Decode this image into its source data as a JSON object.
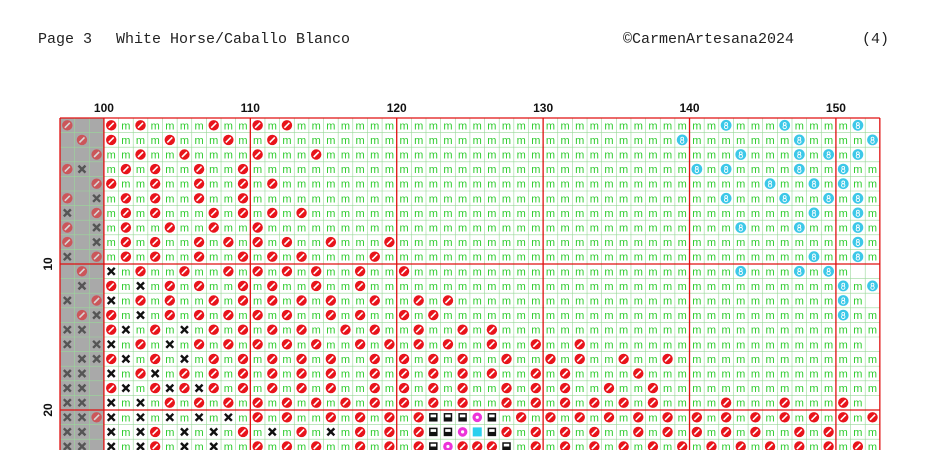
{
  "header": {
    "page": "Page 3",
    "title": "White Horse/Caballo Blanco",
    "copyright": "©CarmenArtesana2024",
    "page_count": "(4)"
  },
  "grid": {
    "column_labels": [
      100,
      110,
      120,
      130,
      140,
      150
    ],
    "row_labels": [
      10,
      20
    ],
    "rows": [
      "o..omommmmommomommmmmmmmmmmmmmmmmmmmmmmmmmmmmcmmmcmmmmc",
      ".o.ommmommmommommmmmmmmmmmmmmmmmmmmmmmmmmmcmmmmmmmcmmmmcm",
      "..ommommommmmommmommmmmmmmmmmmmmmmmmmmmmmmmmmmcmmmcmcmc",
      "ox.momommommommmmmmmmmmmmmmmmmmmmmmmmmmmmmmcmcmmmmcmmcmm",
      "..oommommommomommmmmmmmmmmmmmmmmmmmmmmmmmmmmmmmmcmmcmcmm",
      "o.xmomommommommmmmmmmmmmmmmmmmmmmmmmmmmmmmmmmcmmmcmmcmcm",
      "x.omomommmomomomommmmmmmmmmmmmmmmmmmmmmmmmmmmmmmmmmcmmcm",
      "o.xmommommommommmmmmmmmmmmmmmmmmmmmmmmmmmmmmmmcmmmcmmmcm",
      "o.xmomommomomomommommmommmmmmmmmmmmmmmmmmmmmmmmmmmmmmmcm",
      "x.omomommommomomommmmommmmmmmmmmmmmmmmmmmmmmmmmmmmmcmmcm",
      ".o.xmommommomomomommommommmmmmmmmmmmmmmmmmmmmmcmmmcmcm",
      ".x.omxmomommomommommommmmmmmmmmmmmmmmmmmmmmmmmmmmmmmmcmc",
      "x.oxmomommomomomomommommomommmmmmmmmmmmmmmmmmmmmmmmmmcm",
      ".oxomxmomomomomommomommomommmmmmmmmmmmmmmmmmmmmmmmmmmcmm",
      "xx.oxmomxmomomomommomommommomommmmmmmmmmmmmmmmmmmmmmmmmm",
      "x.xxmomxmomomomomommomomomommommommommmmmmmmmmmmmmmmmmm",
      ".xxoxmomxmomomomomommomomomommommomommommommmmmmmmmmmmmm",
      "xx.xmoxmomomomomomommomomomomommomommmmommmmmmmmmmmmmmmm",
      "xx.oxmoxoxomomomomommomomomommomomommommommmmmmmmmmmmmmm",
      "xx.xmxmomomomomomomomomomomommomomomomomommmmommmommmom",
      "xxoxmxmxmxmxmomommomomomossspsmomomomomomomomomomomomomom",
      "xx.xmxomxmxmomxmomxmomomosspbsomomomommomomomomommomommm",
      "xx.xmxomxmxmmomomommomomospooosmomomomomomomomomomomomom"
    ]
  }
}
